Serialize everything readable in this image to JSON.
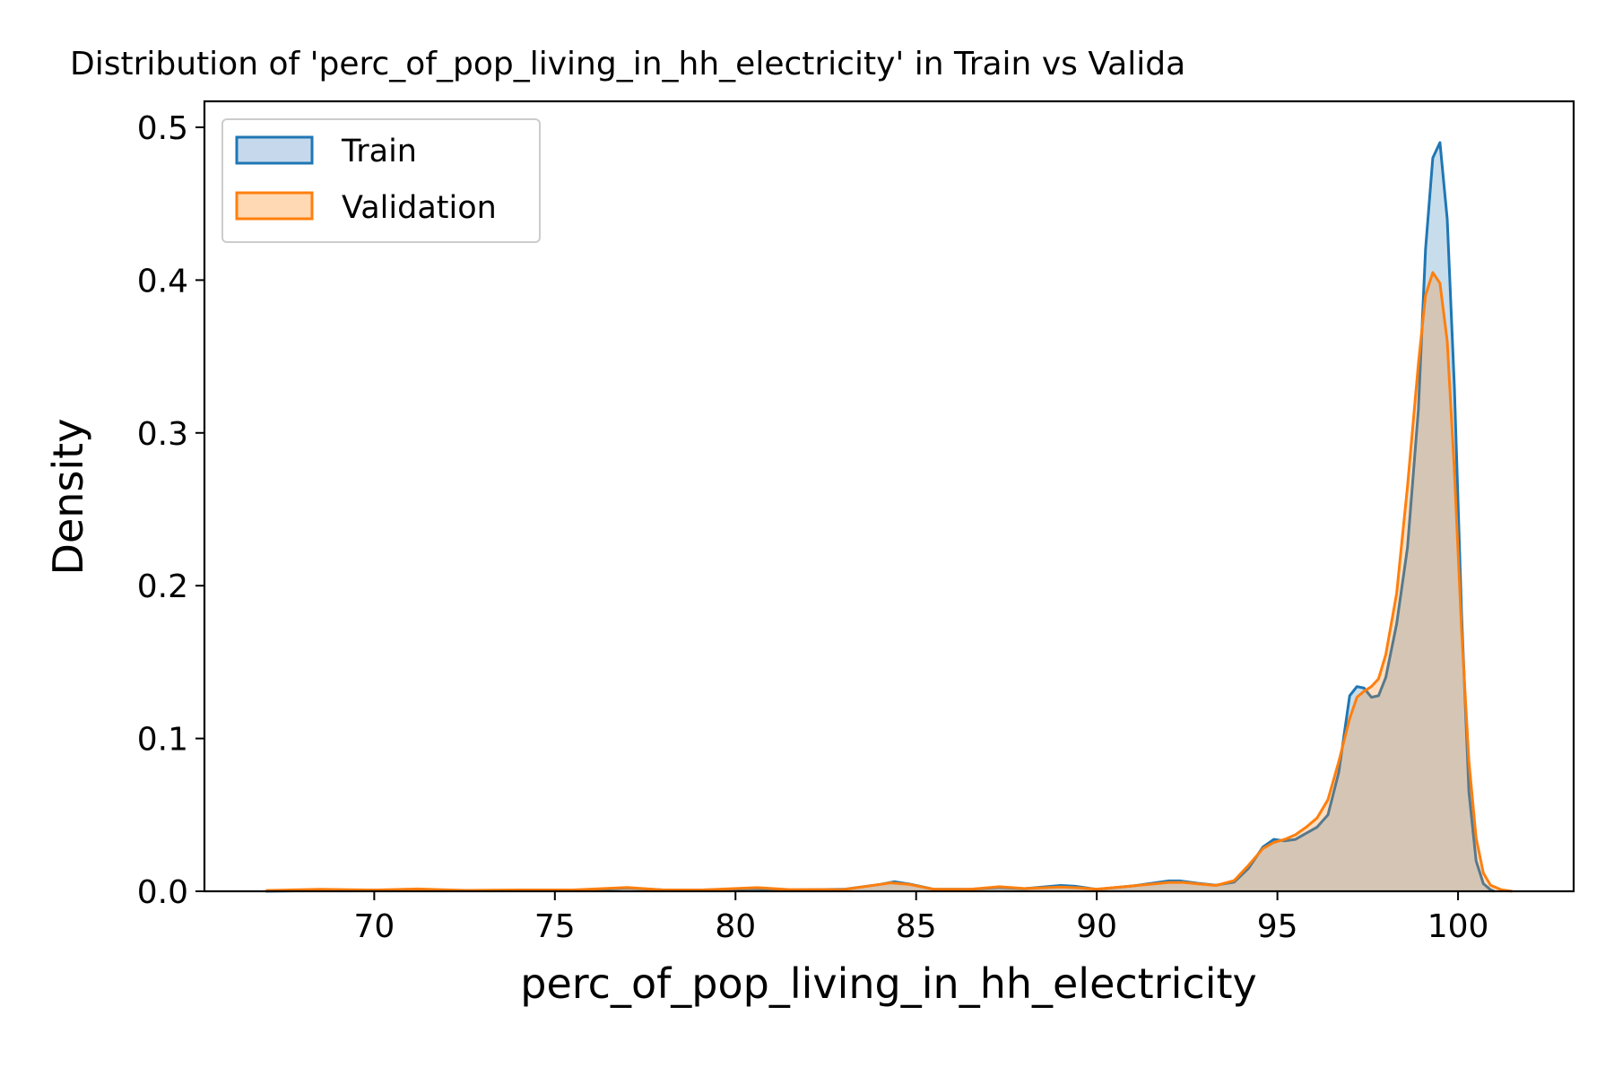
{
  "chart_data": {
    "type": "area",
    "title": "Distribution of 'perc_of_pop_living_in_hh_electricity' in Train vs Valida",
    "xlabel": "perc_of_pop_living_in_hh_electricity",
    "ylabel": "Density",
    "xlim": [
      65.3,
      103.2
    ],
    "ylim": [
      0,
      0.517
    ],
    "x_ticks": [
      70,
      75,
      80,
      85,
      90,
      95,
      100
    ],
    "y_ticks": [
      0.0,
      0.1,
      0.2,
      0.3,
      0.4,
      0.5
    ],
    "x_tick_labels": [
      "70",
      "75",
      "80",
      "85",
      "90",
      "95",
      "100"
    ],
    "y_tick_labels": [
      "0.0",
      "0.1",
      "0.2",
      "0.3",
      "0.4",
      "0.5"
    ],
    "grid": false,
    "legend": {
      "position": "top-left",
      "entries": [
        "Train",
        "Validation"
      ]
    },
    "series": [
      {
        "name": "Train",
        "color": "#1f77b4",
        "fill": "#c6d9ec",
        "points": [
          [
            67,
            0
          ],
          [
            69,
            0.0007
          ],
          [
            71,
            0.0009
          ],
          [
            73,
            0.0005
          ],
          [
            75,
            0.0006
          ],
          [
            76,
            0.0008
          ],
          [
            77,
            0.0022
          ],
          [
            78,
            0.0009
          ],
          [
            79,
            0.0008
          ],
          [
            80.5,
            0.0017
          ],
          [
            81.5,
            0.0009
          ],
          [
            83,
            0.0013
          ],
          [
            84,
            0.0045
          ],
          [
            84.4,
            0.0062
          ],
          [
            84.8,
            0.0048
          ],
          [
            85.5,
            0.0013
          ],
          [
            86.5,
            0.0013
          ],
          [
            87.3,
            0.0025
          ],
          [
            88,
            0.0017
          ],
          [
            89,
            0.0038
          ],
          [
            89.4,
            0.0033
          ],
          [
            90,
            0.0013
          ],
          [
            91,
            0.0035
          ],
          [
            92,
            0.0068
          ],
          [
            92.3,
            0.0068
          ],
          [
            92.8,
            0.0052
          ],
          [
            93.3,
            0.004
          ],
          [
            93.8,
            0.006
          ],
          [
            94.2,
            0.015
          ],
          [
            94.6,
            0.029
          ],
          [
            94.9,
            0.034
          ],
          [
            95.2,
            0.033
          ],
          [
            95.5,
            0.034
          ],
          [
            95.8,
            0.038
          ],
          [
            96.1,
            0.042
          ],
          [
            96.4,
            0.05
          ],
          [
            96.7,
            0.078
          ],
          [
            97,
            0.128
          ],
          [
            97.2,
            0.134
          ],
          [
            97.4,
            0.133
          ],
          [
            97.6,
            0.127
          ],
          [
            97.8,
            0.128
          ],
          [
            98,
            0.14
          ],
          [
            98.3,
            0.175
          ],
          [
            98.6,
            0.225
          ],
          [
            98.9,
            0.315
          ],
          [
            99.1,
            0.42
          ],
          [
            99.3,
            0.48
          ],
          [
            99.5,
            0.49
          ],
          [
            99.7,
            0.44
          ],
          [
            99.9,
            0.33
          ],
          [
            100.1,
            0.18
          ],
          [
            100.3,
            0.065
          ],
          [
            100.5,
            0.02
          ],
          [
            100.7,
            0.005
          ],
          [
            100.9,
            0.001
          ],
          [
            101,
            0
          ]
        ]
      },
      {
        "name": "Validation",
        "color": "#ff7f0e",
        "fill": "#ffd8b4",
        "points": [
          [
            67,
            0.0005
          ],
          [
            68.5,
            0.0013
          ],
          [
            70,
            0.0008
          ],
          [
            71.2,
            0.0015
          ],
          [
            72.5,
            0.0006
          ],
          [
            74,
            0.0009
          ],
          [
            75.5,
            0.0009
          ],
          [
            77,
            0.0025
          ],
          [
            78,
            0.0009
          ],
          [
            79,
            0.0008
          ],
          [
            80.6,
            0.0024
          ],
          [
            81.5,
            0.0011
          ],
          [
            83,
            0.0012
          ],
          [
            84,
            0.0045
          ],
          [
            84.3,
            0.0055
          ],
          [
            84.8,
            0.0045
          ],
          [
            85.5,
            0.0013
          ],
          [
            86.5,
            0.0013
          ],
          [
            87.3,
            0.003
          ],
          [
            88,
            0.0018
          ],
          [
            89,
            0.0028
          ],
          [
            89.5,
            0.0023
          ],
          [
            90,
            0.0014
          ],
          [
            91,
            0.0035
          ],
          [
            92,
            0.0058
          ],
          [
            92.4,
            0.0058
          ],
          [
            92.8,
            0.0048
          ],
          [
            93.3,
            0.0038
          ],
          [
            93.8,
            0.007
          ],
          [
            94.2,
            0.017
          ],
          [
            94.6,
            0.028
          ],
          [
            94.9,
            0.032
          ],
          [
            95.2,
            0.034
          ],
          [
            95.5,
            0.037
          ],
          [
            95.8,
            0.042
          ],
          [
            96.1,
            0.048
          ],
          [
            96.4,
            0.06
          ],
          [
            96.7,
            0.085
          ],
          [
            97,
            0.113
          ],
          [
            97.2,
            0.127
          ],
          [
            97.4,
            0.131
          ],
          [
            97.6,
            0.134
          ],
          [
            97.8,
            0.139
          ],
          [
            98,
            0.155
          ],
          [
            98.3,
            0.195
          ],
          [
            98.6,
            0.265
          ],
          [
            98.9,
            0.345
          ],
          [
            99.1,
            0.39
          ],
          [
            99.3,
            0.405
          ],
          [
            99.5,
            0.398
          ],
          [
            99.7,
            0.36
          ],
          [
            99.9,
            0.275
          ],
          [
            100.1,
            0.17
          ],
          [
            100.3,
            0.085
          ],
          [
            100.5,
            0.035
          ],
          [
            100.7,
            0.012
          ],
          [
            100.9,
            0.004
          ],
          [
            101.2,
            0.001
          ],
          [
            101.5,
            0
          ]
        ]
      }
    ]
  }
}
